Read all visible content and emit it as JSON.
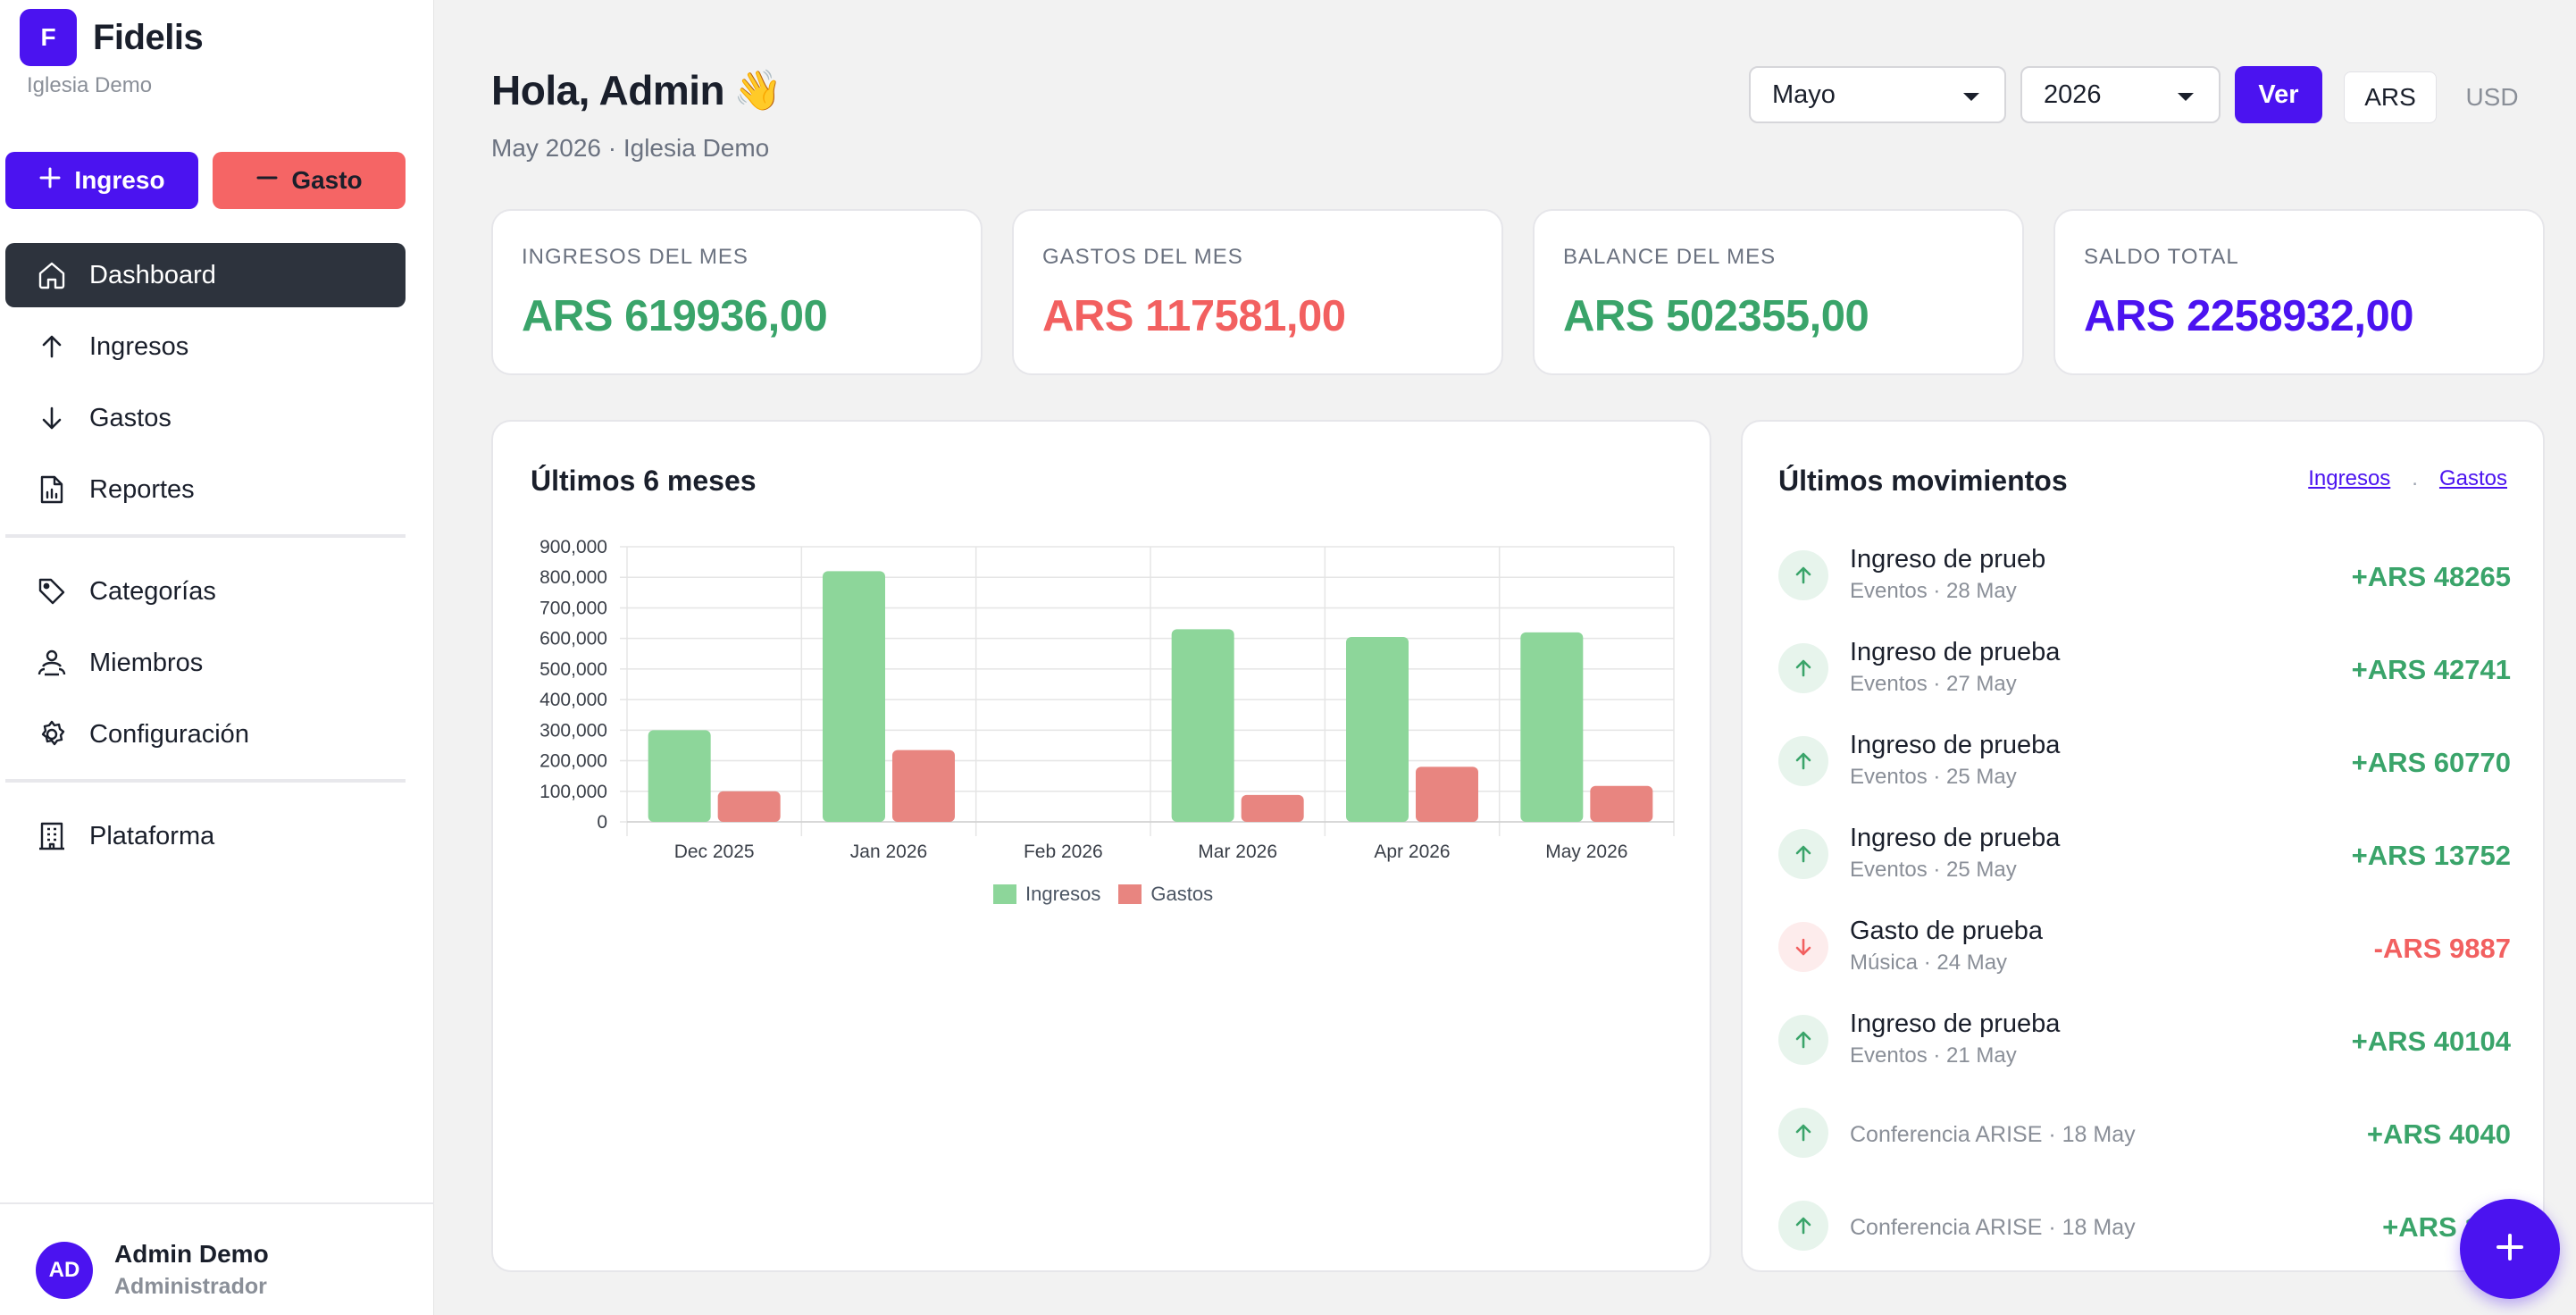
{
  "app": {
    "logo_letter": "F",
    "name": "Fidelis",
    "church": "Iglesia Demo"
  },
  "quick_actions": {
    "ingreso_label": "Ingreso",
    "gasto_label": "Gasto"
  },
  "nav": [
    {
      "label": "Dashboard",
      "icon": "home-icon",
      "active": true
    },
    {
      "label": "Ingresos",
      "icon": "arrow-up-icon"
    },
    {
      "label": "Gastos",
      "icon": "arrow-down-icon"
    },
    {
      "label": "Reportes",
      "icon": "report-icon"
    }
  ],
  "nav2": [
    {
      "label": "Categorías",
      "icon": "tag-icon"
    },
    {
      "label": "Miembros",
      "icon": "members-icon"
    },
    {
      "label": "Configuración",
      "icon": "gear-icon"
    }
  ],
  "nav3": [
    {
      "label": "Plataforma",
      "icon": "building-icon"
    }
  ],
  "user": {
    "initials": "AD",
    "name": "Admin Demo",
    "role": "Administrador"
  },
  "header": {
    "greeting": "Hola, Admin",
    "emoji": "👋",
    "subtitle": "May 2026 · Iglesia Demo"
  },
  "filters": {
    "month": "Mayo",
    "year": "2026",
    "ver_label": "Ver",
    "currency_active": "ARS",
    "currency_other": "USD"
  },
  "stats": [
    {
      "label": "INGRESOS DEL MES",
      "value": "ARS 619936,00",
      "color": "#3aa46a"
    },
    {
      "label": "GASTOS DEL MES",
      "value": "ARS 117581,00",
      "color": "#f26060"
    },
    {
      "label": "BALANCE DEL MES",
      "value": "ARS 502355,00",
      "color": "#3aa46a"
    },
    {
      "label": "SALDO TOTAL",
      "value": "ARS 2258932,00",
      "color": "#4b13f0"
    }
  ],
  "chart_panel": {
    "title": "Últimos 6 meses"
  },
  "chart_data": {
    "type": "bar",
    "categories": [
      "Dec 2025",
      "Jan 2026",
      "Feb 2026",
      "Mar 2026",
      "Apr 2026",
      "May 2026"
    ],
    "series": [
      {
        "name": "Ingresos",
        "color": "#8dd69a",
        "values": [
          300000,
          820000,
          0,
          630000,
          605000,
          619936
        ]
      },
      {
        "name": "Gastos",
        "color": "#e88580",
        "values": [
          100000,
          235000,
          0,
          88000,
          180000,
          117581
        ]
      }
    ],
    "ylim": [
      0,
      900000
    ],
    "yticks": [
      "0",
      "100,000",
      "200,000",
      "300,000",
      "400,000",
      "500,000",
      "600,000",
      "700,000",
      "800,000",
      "900,000"
    ],
    "grid": true,
    "legend": "bottom"
  },
  "movements": {
    "title": "Últimos movimientos",
    "link_ingresos": "Ingresos",
    "link_sep": ".",
    "link_gastos": "Gastos",
    "items": [
      {
        "title": "Ingreso de prueb",
        "meta": "Eventos · 28 May",
        "amount": "+ARS 48265",
        "type": "up"
      },
      {
        "title": "Ingreso de prueba",
        "meta": "Eventos · 27 May",
        "amount": "+ARS 42741",
        "type": "up"
      },
      {
        "title": "Ingreso de prueba",
        "meta": "Eventos · 25 May",
        "amount": "+ARS 60770",
        "type": "up"
      },
      {
        "title": "Ingreso de prueba",
        "meta": "Eventos · 25 May",
        "amount": "+ARS 13752",
        "type": "up"
      },
      {
        "title": "Gasto de prueba",
        "meta": "Música · 24 May",
        "amount": "-ARS 9887",
        "type": "down"
      },
      {
        "title": "Ingreso de prueba",
        "meta": "Eventos · 21 May",
        "amount": "+ARS 40104",
        "type": "up"
      },
      {
        "title": "",
        "meta": "Conferencia ARISE · 18 May",
        "amount": "+ARS 4040",
        "type": "up"
      },
      {
        "title": "",
        "meta": "Conferencia ARISE · 18 May",
        "amount": "+ARS 100",
        "type": "up"
      }
    ]
  },
  "fab": {
    "icon": "plus-icon"
  }
}
